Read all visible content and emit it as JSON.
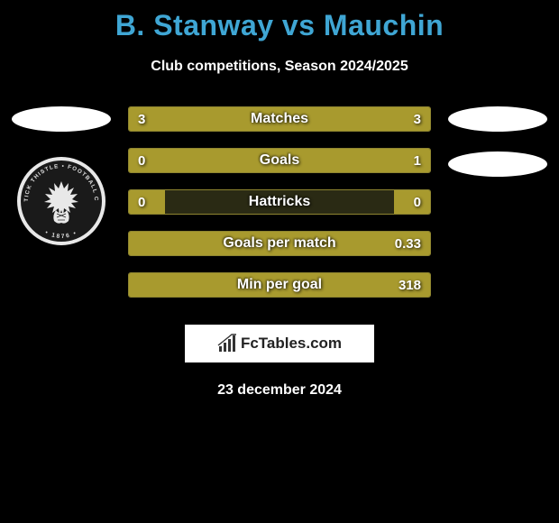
{
  "header": {
    "title": "B. Stanway vs Mauchin",
    "title_color": "#3fa6d4",
    "subtitle": "Club competitions, Season 2024/2025"
  },
  "bars": {
    "fill_color": "#a89a2e",
    "empty_color": "#2a2a14",
    "border_color": "#8e8530",
    "rows": [
      {
        "label": "Matches",
        "left_val": "3",
        "right_val": "3",
        "left_pct": 50,
        "right_pct": 50
      },
      {
        "label": "Goals",
        "left_val": "0",
        "right_val": "1",
        "left_pct": 7,
        "right_pct": 93
      },
      {
        "label": "Hattricks",
        "left_val": "0",
        "right_val": "0",
        "left_pct": 12,
        "right_pct": 12
      },
      {
        "label": "Goals per match",
        "left_val": "",
        "right_val": "0.33",
        "left_pct": 0,
        "right_pct": 100
      },
      {
        "label": "Min per goal",
        "left_val": "",
        "right_val": "318",
        "left_pct": 0,
        "right_pct": 100
      }
    ]
  },
  "left_badge": {
    "show_crest": true,
    "crest_text_top": "PARTICK THISTLE",
    "crest_text_bottom": "FOOTBALL CLUB",
    "crest_year": "1876"
  },
  "brand": {
    "text": "FcTables.com"
  },
  "footer": {
    "date": "23 december 2024"
  },
  "colors": {
    "background": "#000000",
    "text": "#ffffff"
  }
}
